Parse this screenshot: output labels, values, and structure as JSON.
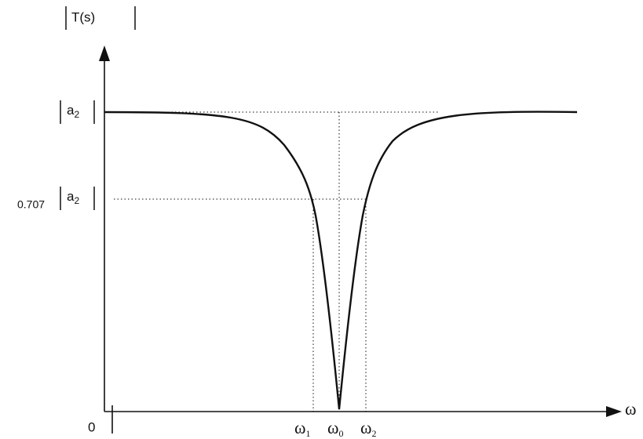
{
  "axes": {
    "y_label": "T(s)",
    "x_label": "ω",
    "origin": "0"
  },
  "levels": [
    {
      "symbol": "a",
      "subscript": "2"
    },
    {
      "coefficient": "0.707",
      "symbol": "a",
      "subscript": "2"
    }
  ],
  "frequencies": [
    {
      "symbol": "ω",
      "subscript": "1"
    },
    {
      "symbol": "ω",
      "subscript": "0"
    },
    {
      "symbol": "ω",
      "subscript": "2"
    }
  ]
}
